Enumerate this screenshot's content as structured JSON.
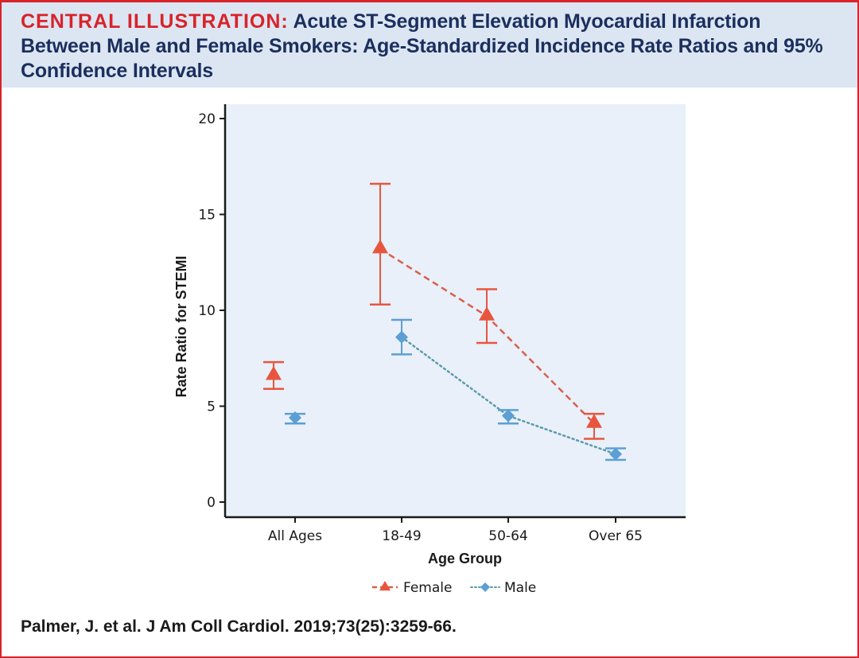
{
  "header": {
    "label": "CENTRAL ILLUSTRATION:",
    "title": "Acute ST-Segment Elevation Myocardial Infarction Between Male and Female Smokers: Age-Standardized Incidence Rate Ratios and 95% Confidence Intervals"
  },
  "citation": "Palmer, J. et al. J Am Coll Cardiol. 2019;73(25):3259-66.",
  "colors": {
    "female": "#e8553f",
    "male": "#5b9fd4",
    "plot_bg": "#e9f0f9",
    "frame": "#d8232a",
    "header_bg": "#dce6f2"
  },
  "chart_data": {
    "type": "line",
    "title": "",
    "xlabel": "Age Group",
    "ylabel": "Rate Ratio for STEMI",
    "ylim": [
      0,
      20
    ],
    "yticks": [
      0,
      5,
      10,
      15,
      20
    ],
    "categories": [
      "All Ages",
      "18-49",
      "50-64",
      "Over 65"
    ],
    "grid": false,
    "legend_position": "bottom-center",
    "series": [
      {
        "name": "Female",
        "marker": "triangle",
        "line_style": "dashed",
        "values": [
          6.6,
          13.2,
          9.7,
          4.1
        ],
        "ci_lower": [
          5.9,
          10.3,
          8.3,
          3.3
        ],
        "ci_upper": [
          7.3,
          16.6,
          11.1,
          4.6
        ],
        "connected_from_index": 1
      },
      {
        "name": "Male",
        "marker": "diamond",
        "line_style": "dotted",
        "values": [
          4.4,
          8.6,
          4.5,
          2.5
        ],
        "ci_lower": [
          4.1,
          7.7,
          4.1,
          2.2
        ],
        "ci_upper": [
          4.6,
          9.5,
          4.8,
          2.8
        ],
        "connected_from_index": 1
      }
    ]
  }
}
